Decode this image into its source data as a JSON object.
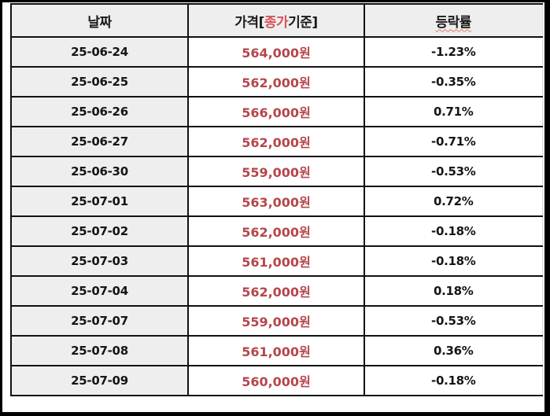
{
  "colors": {
    "frame": "#000000",
    "header_bg": "#eeeeee",
    "date_bg": "#eeeeee",
    "price_text": "#b5464b",
    "highlight_text": "#d9535a",
    "border": "#111111"
  },
  "table": {
    "headers": {
      "date": "날짜",
      "price_prefix": "가격[",
      "price_highlight": "종가",
      "price_suffix": "기준]",
      "rate": "등락률"
    },
    "rows": [
      {
        "date": "25-06-24",
        "price": "564,000원",
        "rate": "-1.23%"
      },
      {
        "date": "25-06-25",
        "price": "562,000원",
        "rate": "-0.35%"
      },
      {
        "date": "25-06-26",
        "price": "566,000원",
        "rate": "0.71%"
      },
      {
        "date": "25-06-27",
        "price": "562,000원",
        "rate": "-0.71%"
      },
      {
        "date": "25-06-30",
        "price": "559,000원",
        "rate": "-0.53%"
      },
      {
        "date": "25-07-01",
        "price": "563,000원",
        "rate": "0.72%"
      },
      {
        "date": "25-07-02",
        "price": "562,000원",
        "rate": "-0.18%"
      },
      {
        "date": "25-07-03",
        "price": "561,000원",
        "rate": "-0.18%"
      },
      {
        "date": "25-07-04",
        "price": "562,000원",
        "rate": "0.18%"
      },
      {
        "date": "25-07-07",
        "price": "559,000원",
        "rate": "-0.53%"
      },
      {
        "date": "25-07-08",
        "price": "561,000원",
        "rate": "0.36%"
      },
      {
        "date": "25-07-09",
        "price": "560,000원",
        "rate": "-0.18%"
      }
    ]
  }
}
